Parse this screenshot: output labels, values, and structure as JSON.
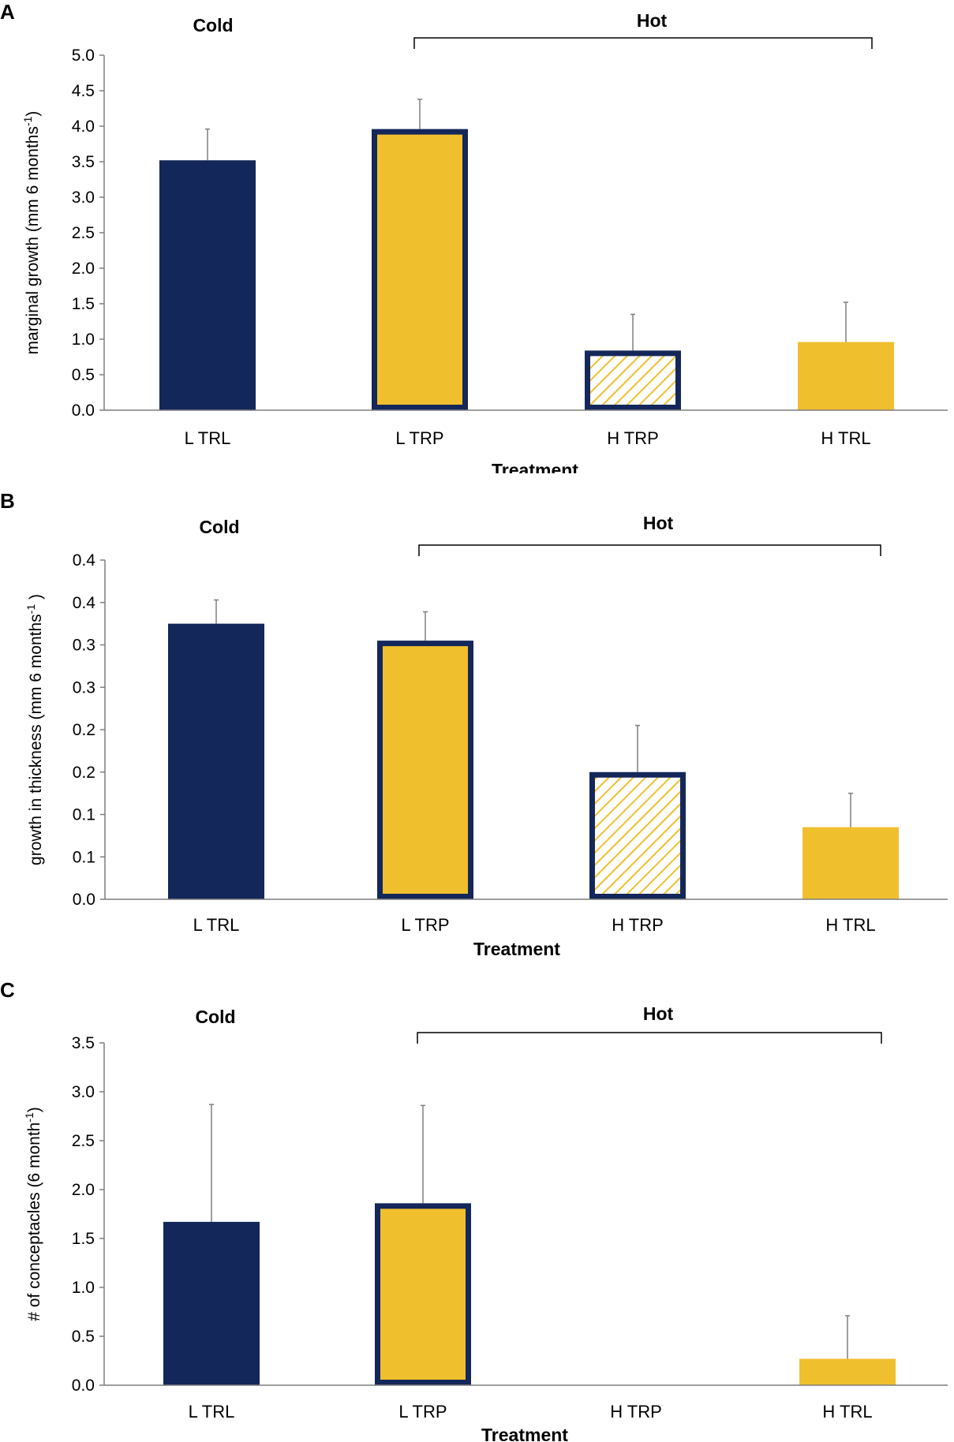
{
  "colors": {
    "navy": "#14275a",
    "gold": "#f0bf2e",
    "axis": "#7f7f7f",
    "error": "#7f7f7f"
  },
  "chart_data": [
    {
      "type": "bar",
      "panel": "A",
      "categories": [
        "L TRL",
        "L TRP",
        "H TRP",
        "H TRL"
      ],
      "values": [
        3.52,
        3.96,
        0.84,
        0.96
      ],
      "errors": [
        0.44,
        0.42,
        0.51,
        0.56
      ],
      "styles": [
        "navy",
        "gold-outlined",
        "hatched-outlined",
        "gold"
      ],
      "ylim": [
        0,
        5.0
      ],
      "ytick_values": [
        0,
        0.5,
        1.0,
        1.5,
        2.0,
        2.5,
        3.0,
        3.5,
        4.0,
        4.5,
        5.0
      ],
      "ytick_labels": [
        "0.0",
        "0.5",
        "1.0",
        "1.5",
        "2.0",
        "2.5",
        "3.0",
        "3.5",
        "4.0",
        "4.5",
        "5.0"
      ],
      "ylabel_main": "marginal growth (mm  6 months",
      "ylabel_sup": "-1",
      "ylabel_end": ")",
      "xlabel": "Treatment",
      "cold_label": "Cold",
      "hot_label": "Hot"
    },
    {
      "type": "bar",
      "panel": "B",
      "categories": [
        "L TRL",
        "L TRP",
        "H TRP",
        "H TRL"
      ],
      "values": [
        0.325,
        0.305,
        0.15,
        0.085
      ],
      "errors": [
        0.028,
        0.034,
        0.055,
        0.04
      ],
      "styles": [
        "navy",
        "gold-outlined",
        "hatched-outlined",
        "gold"
      ],
      "ylim": [
        0,
        0.4
      ],
      "ytick_values": [
        0,
        0.05,
        0.1,
        0.15,
        0.2,
        0.25,
        0.3,
        0.35,
        0.4
      ],
      "ytick_labels": [
        "0.0",
        "0.1",
        "0.1",
        "0.2",
        "0.2",
        "0.3",
        "0.3",
        "0.4",
        "0.4"
      ],
      "ylabel_main": "growth in thickness (mm  6 months",
      "ylabel_sup": "-1",
      "ylabel_end": " )",
      "xlabel": "Treatment",
      "cold_label": "Cold",
      "hot_label": "Hot"
    },
    {
      "type": "bar",
      "panel": "C",
      "categories": [
        "L TRL",
        "L TRP",
        "H TRP",
        "H TRL"
      ],
      "values": [
        1.67,
        1.86,
        0,
        0.27
      ],
      "errors": [
        1.2,
        1.0,
        0,
        0.44
      ],
      "styles": [
        "navy",
        "gold-outlined",
        "none",
        "gold"
      ],
      "ylim": [
        0,
        3.5
      ],
      "ytick_values": [
        0,
        0.5,
        1.0,
        1.5,
        2.0,
        2.5,
        3.0,
        3.5
      ],
      "ytick_labels": [
        "0.0",
        "0.5",
        "1.0",
        "1.5",
        "2.0",
        "2.5",
        "3.0",
        "3.5"
      ],
      "ylabel_main": "# of conceptacles (6 month",
      "ylabel_sup": "-1",
      "ylabel_end": ")",
      "xlabel": "Treatment",
      "cold_label": "Cold",
      "hot_label": "Hot"
    }
  ]
}
